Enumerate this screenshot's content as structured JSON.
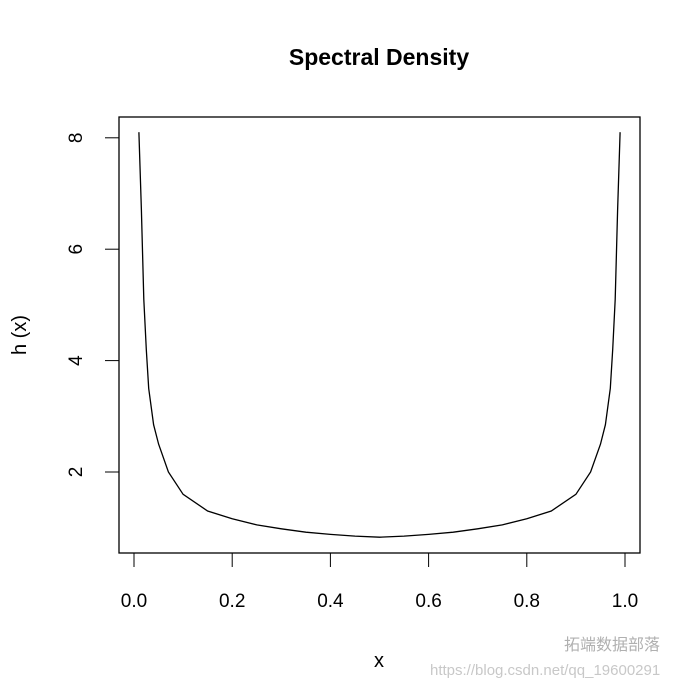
{
  "chart_data": {
    "type": "line",
    "title": "Spectral Density",
    "xlabel": "x",
    "ylabel": "h (x)",
    "xlim": [
      -0.03,
      1.03
    ],
    "ylim": [
      0.55,
      8.38
    ],
    "x_ticks": [
      "0.0",
      "0.2",
      "0.4",
      "0.6",
      "0.8",
      "1.0"
    ],
    "y_ticks": [
      "2",
      "4",
      "6",
      "8"
    ],
    "grid": false,
    "series": [
      {
        "x": [
          0.01,
          0.015,
          0.02,
          0.025,
          0.03,
          0.04,
          0.05,
          0.07,
          0.1,
          0.15,
          0.2,
          0.25,
          0.3,
          0.35,
          0.4,
          0.45,
          0.5,
          0.55,
          0.6,
          0.65,
          0.7,
          0.75,
          0.8,
          0.85,
          0.9,
          0.93,
          0.95,
          0.96,
          0.97,
          0.975,
          0.98,
          0.985,
          0.99
        ],
        "y": [
          8.1,
          6.7,
          5.1,
          4.2,
          3.5,
          2.85,
          2.5,
          2.0,
          1.6,
          1.3,
          1.16,
          1.05,
          0.98,
          0.92,
          0.88,
          0.85,
          0.83,
          0.85,
          0.88,
          0.92,
          0.98,
          1.05,
          1.16,
          1.3,
          1.6,
          2.0,
          2.5,
          2.85,
          3.5,
          4.2,
          5.1,
          6.7,
          8.1
        ],
        "color": "#000000"
      }
    ]
  },
  "watermark": {
    "brand": "拓端数据部落",
    "url": "https://blog.csdn.net/qq_19600291"
  }
}
